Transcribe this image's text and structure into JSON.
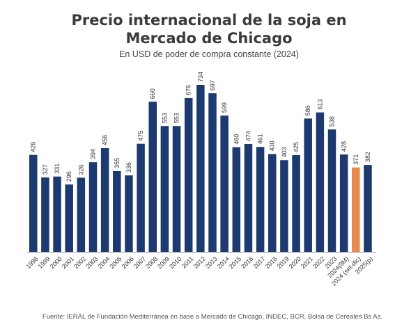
{
  "title_line1": "Precio internacional de la soja en",
  "title_line2": "Mercado de Chicago",
  "subtitle": "En USD de poder de compra constante (2024)",
  "source": "Fuente: IERAL de Fundación Mediterránea en base a Mercado de Chicago, INDEC, BCR, Bolsa de Cereales Bs As.",
  "colors": {
    "bar": "#1c3a70",
    "highlight": "#ea8a4e"
  },
  "chart_data": {
    "type": "bar",
    "categories": [
      "1998",
      "1999",
      "2000",
      "2001",
      "2002",
      "2003",
      "2004",
      "2005",
      "2006",
      "2007",
      "2008",
      "2009",
      "2010",
      "2011",
      "2012",
      "2013",
      "2014",
      "2015",
      "2016",
      "2017",
      "2018",
      "2019",
      "2020",
      "2021",
      "2022",
      "2023",
      "2024(8M)",
      "2024 (set-dic)",
      "2025(p)"
    ],
    "values": [
      426,
      327,
      331,
      296,
      326,
      394,
      456,
      355,
      336,
      475,
      660,
      553,
      553,
      676,
      734,
      697,
      599,
      460,
      474,
      461,
      430,
      403,
      425,
      586,
      613,
      538,
      428,
      371,
      382
    ],
    "highlight_index": 27,
    "ylim": [
      0,
      750
    ],
    "title": "Precio internacional de la soja en Mercado de Chicago",
    "xlabel": "",
    "ylabel": "",
    "grid": false,
    "legend": "none"
  }
}
